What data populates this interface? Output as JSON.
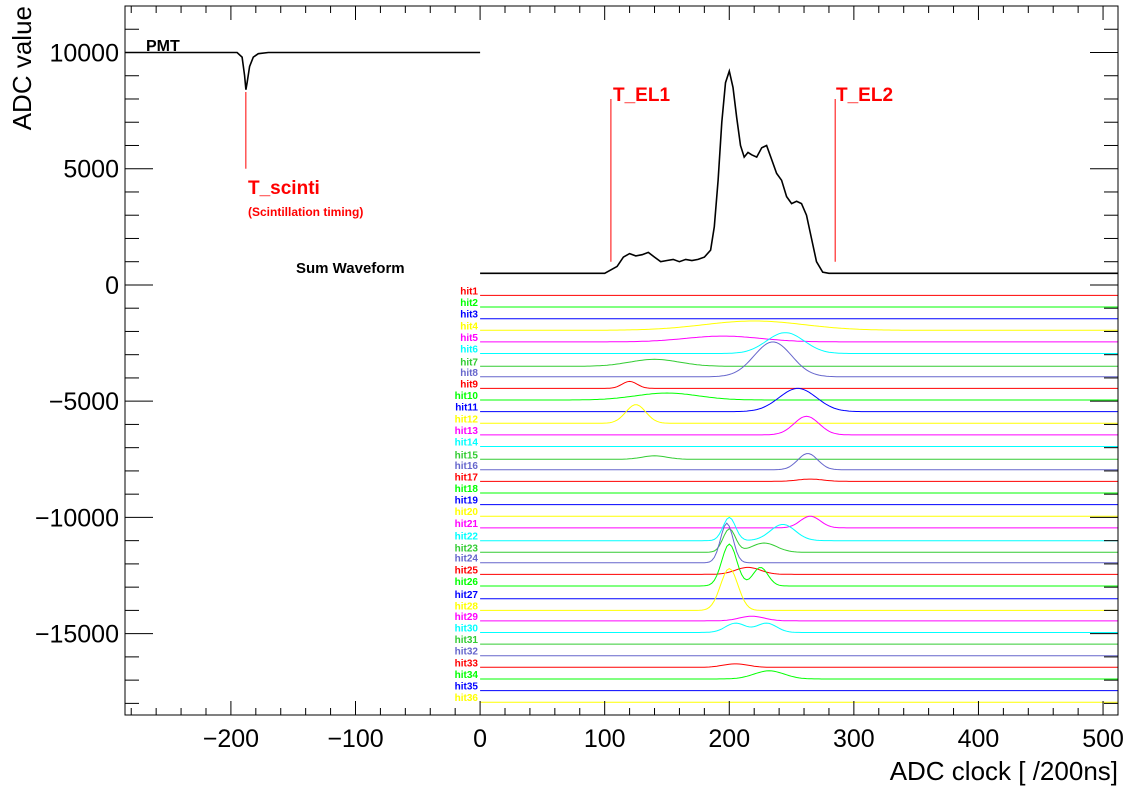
{
  "chart_data": {
    "type": "line",
    "xlabel": "ADC clock [ /200ns]",
    "ylabel": "ADC value",
    "xlim": [
      -285,
      512
    ],
    "ylim": [
      -18500,
      12000
    ],
    "x_ticks": [
      -200,
      -100,
      0,
      100,
      200,
      300,
      400,
      500
    ],
    "y_ticks": [
      10000,
      5000,
      0,
      -5000,
      -10000,
      -15000
    ],
    "x_tick_labels": [
      "−200",
      "−100",
      "0",
      "100",
      "200",
      "300",
      "400",
      "500"
    ],
    "y_tick_labels": [
      "10000",
      "5000",
      "0",
      "−5000",
      "−10000",
      "−15000"
    ],
    "annotations": {
      "pmt": "PMT",
      "sum_waveform": "Sum Waveform",
      "t_scinti": "T_scinti",
      "t_scinti_sub": "(Scintillation timing)",
      "t_el1": "T_EL1",
      "t_el2": "T_EL2"
    },
    "markers": {
      "t_scinti": {
        "x": -188,
        "y_from": 5000,
        "y_to": 8300
      },
      "t_el1": {
        "x": 105,
        "y_from": 1000,
        "y_to": 8000
      },
      "t_el2": {
        "x": 285,
        "y_from": 1000,
        "y_to": 8000
      }
    },
    "series": [
      {
        "name": "PMT",
        "color": "#000000",
        "x": [
          -285,
          -195,
          -191,
          -189,
          -188,
          -187,
          -185,
          -182,
          -178,
          -170,
          -100,
          0
        ],
        "y": [
          10000,
          10000,
          9800,
          9000,
          8400,
          8700,
          9400,
          9800,
          9950,
          10000,
          10000,
          10000
        ]
      },
      {
        "name": "Sum Waveform",
        "color": "#000000",
        "x": [
          0,
          100,
          110,
          115,
          120,
          125,
          130,
          135,
          140,
          145,
          150,
          155,
          160,
          165,
          170,
          175,
          180,
          185,
          188,
          191,
          194,
          197,
          200,
          203,
          206,
          209,
          212,
          215,
          218,
          222,
          226,
          230,
          234,
          238,
          242,
          246,
          250,
          254,
          258,
          262,
          266,
          270,
          275,
          280,
          285,
          512
        ],
        "y": [
          500,
          500,
          800,
          1200,
          1350,
          1250,
          1300,
          1400,
          1200,
          1000,
          1050,
          1100,
          1000,
          1100,
          1050,
          1100,
          1200,
          1500,
          2500,
          4500,
          7000,
          8700,
          9200,
          8500,
          7200,
          6000,
          5500,
          5700,
          5600,
          5500,
          5900,
          6000,
          5400,
          4800,
          4500,
          3800,
          3500,
          3600,
          3500,
          3000,
          2000,
          1000,
          550,
          500,
          500,
          500
        ]
      }
    ],
    "hits": [
      {
        "name": "hit1",
        "color": "#ff0000",
        "baseline": -450,
        "peaks": []
      },
      {
        "name": "hit2",
        "color": "#00ff00",
        "baseline": -950,
        "peaks": []
      },
      {
        "name": "hit3",
        "color": "#0000ff",
        "baseline": -1450,
        "peaks": []
      },
      {
        "name": "hit4",
        "color": "#ffff00",
        "baseline": -1950,
        "peaks": [
          [
            220,
            40,
            400
          ]
        ]
      },
      {
        "name": "hit5",
        "color": "#ff00ff",
        "baseline": -2450,
        "peaks": [
          [
            195,
            30,
            250
          ]
        ]
      },
      {
        "name": "hit6",
        "color": "#00ffff",
        "baseline": -2950,
        "peaks": [
          [
            245,
            15,
            900
          ]
        ]
      },
      {
        "name": "hit7",
        "color": "#33cc33",
        "baseline": -3500,
        "peaks": [
          [
            140,
            20,
            300
          ]
        ]
      },
      {
        "name": "hit8",
        "color": "#6666cc",
        "baseline": -3950,
        "peaks": [
          [
            235,
            15,
            1500
          ]
        ]
      },
      {
        "name": "hit9",
        "color": "#ff0000",
        "baseline": -4450,
        "peaks": [
          [
            120,
            6,
            300
          ]
        ]
      },
      {
        "name": "hit10",
        "color": "#00ff00",
        "baseline": -4950,
        "peaks": [
          [
            150,
            25,
            300
          ]
        ]
      },
      {
        "name": "hit11",
        "color": "#0000ff",
        "baseline": -5450,
        "peaks": [
          [
            255,
            15,
            1000
          ]
        ]
      },
      {
        "name": "hit12",
        "color": "#ffff00",
        "baseline": -5950,
        "peaks": [
          [
            125,
            8,
            800
          ]
        ]
      },
      {
        "name": "hit13",
        "color": "#ff00ff",
        "baseline": -6450,
        "peaks": [
          [
            262,
            10,
            800
          ]
        ]
      },
      {
        "name": "hit14",
        "color": "#00ffff",
        "baseline": -6950,
        "peaks": []
      },
      {
        "name": "hit15",
        "color": "#33cc33",
        "baseline": -7500,
        "peaks": [
          [
            140,
            10,
            150
          ]
        ]
      },
      {
        "name": "hit16",
        "color": "#6666cc",
        "baseline": -7950,
        "peaks": [
          [
            263,
            8,
            700
          ]
        ]
      },
      {
        "name": "hit17",
        "color": "#ff0000",
        "baseline": -8450,
        "peaks": [
          [
            265,
            10,
            100
          ]
        ]
      },
      {
        "name": "hit18",
        "color": "#00ff00",
        "baseline": -8950,
        "peaks": []
      },
      {
        "name": "hit19",
        "color": "#0000ff",
        "baseline": -9450,
        "peaks": []
      },
      {
        "name": "hit20",
        "color": "#ffff00",
        "baseline": -9950,
        "peaks": []
      },
      {
        "name": "hit21",
        "color": "#ff00ff",
        "baseline": -10450,
        "peaks": [
          [
            265,
            8,
            500
          ]
        ]
      },
      {
        "name": "hit22",
        "color": "#00ffff",
        "baseline": -11000,
        "peaks": [
          [
            200,
            5,
            1000
          ],
          [
            243,
            10,
            700
          ]
        ]
      },
      {
        "name": "hit23",
        "color": "#33cc33",
        "baseline": -11500,
        "peaks": [
          [
            200,
            5,
            1000
          ],
          [
            228,
            10,
            400
          ]
        ]
      },
      {
        "name": "hit24",
        "color": "#6666cc",
        "baseline": -11950,
        "peaks": [
          [
            198,
            5,
            1700
          ]
        ]
      },
      {
        "name": "hit25",
        "color": "#ff0000",
        "baseline": -12450,
        "peaks": [
          [
            215,
            10,
            300
          ]
        ]
      },
      {
        "name": "hit26",
        "color": "#00ff00",
        "baseline": -12950,
        "peaks": [
          [
            200,
            6,
            1800
          ],
          [
            225,
            6,
            800
          ]
        ]
      },
      {
        "name": "hit27",
        "color": "#0000ff",
        "baseline": -13500,
        "peaks": []
      },
      {
        "name": "hit28",
        "color": "#ffff00",
        "baseline": -14000,
        "peaks": [
          [
            200,
            7,
            1800
          ]
        ]
      },
      {
        "name": "hit29",
        "color": "#ff00ff",
        "baseline": -14450,
        "peaks": [
          [
            218,
            10,
            200
          ]
        ]
      },
      {
        "name": "hit30",
        "color": "#00ffff",
        "baseline": -14950,
        "peaks": [
          [
            205,
            8,
            400
          ],
          [
            230,
            8,
            400
          ]
        ]
      },
      {
        "name": "hit31",
        "color": "#33cc33",
        "baseline": -15450,
        "peaks": []
      },
      {
        "name": "hit32",
        "color": "#6666cc",
        "baseline": -15950,
        "peaks": []
      },
      {
        "name": "hit33",
        "color": "#ff0000",
        "baseline": -16450,
        "peaks": [
          [
            205,
            10,
            150
          ]
        ]
      },
      {
        "name": "hit34",
        "color": "#00ff00",
        "baseline": -16950,
        "peaks": [
          [
            232,
            12,
            350
          ]
        ]
      },
      {
        "name": "hit35",
        "color": "#0000ff",
        "baseline": -17450,
        "peaks": []
      },
      {
        "name": "hit36",
        "color": "#ffff00",
        "baseline": -17950,
        "peaks": []
      }
    ]
  }
}
